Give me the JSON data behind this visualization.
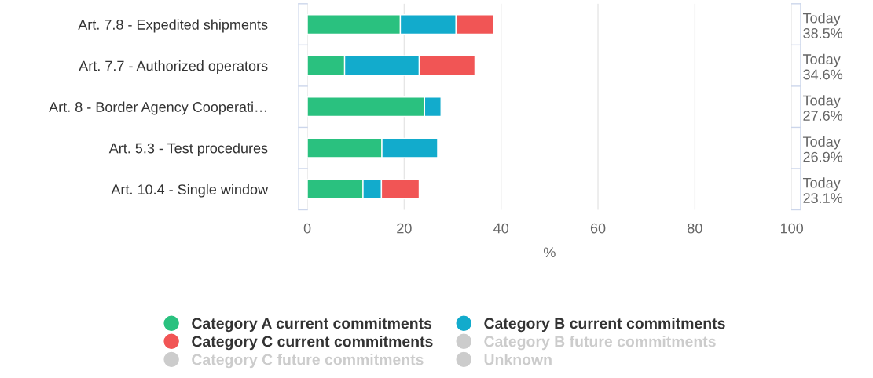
{
  "chart_data": {
    "type": "bar",
    "orientation": "horizontal",
    "stacked": true,
    "xlabel": "%",
    "categories": [
      "Art. 7.8 - Expedited shipments",
      "Art. 7.7 - Authorized operators",
      "Art. 8 - Border Agency Cooperati…",
      "Art. 5.3 - Test procedures",
      "Art. 10.4 - Single window"
    ],
    "series": [
      {
        "name": "Category A current commitments",
        "color": "#2ac17f",
        "values": [
          19.2,
          7.7,
          24.2,
          15.4,
          11.5
        ]
      },
      {
        "name": "Category B current commitments",
        "color": "#12abcc",
        "values": [
          11.5,
          15.4,
          3.4,
          11.5,
          3.8
        ]
      },
      {
        "name": "Category C current commitments",
        "color": "#f15555",
        "values": [
          7.8,
          11.5,
          null,
          null,
          7.8
        ]
      },
      {
        "name": "Category B future commitments",
        "color": "#cccccc",
        "values": [
          null,
          null,
          null,
          null,
          null
        ]
      },
      {
        "name": "Category C future commitments",
        "color": "#cccccc",
        "values": [
          null,
          null,
          null,
          null,
          null
        ]
      },
      {
        "name": "Unknown",
        "color": "#cccccc",
        "values": [
          null,
          null,
          null,
          null,
          null
        ]
      }
    ],
    "annotations": [
      "Today\n38.5%",
      "Today\n34.6%",
      "Today\n27.6%",
      "Today\n26.9%",
      "Today\n23.1%"
    ],
    "xlim": [
      0,
      100
    ],
    "xticks": [
      0,
      20,
      40,
      60,
      80,
      100
    ],
    "grid": "x",
    "legend": "bottom"
  }
}
